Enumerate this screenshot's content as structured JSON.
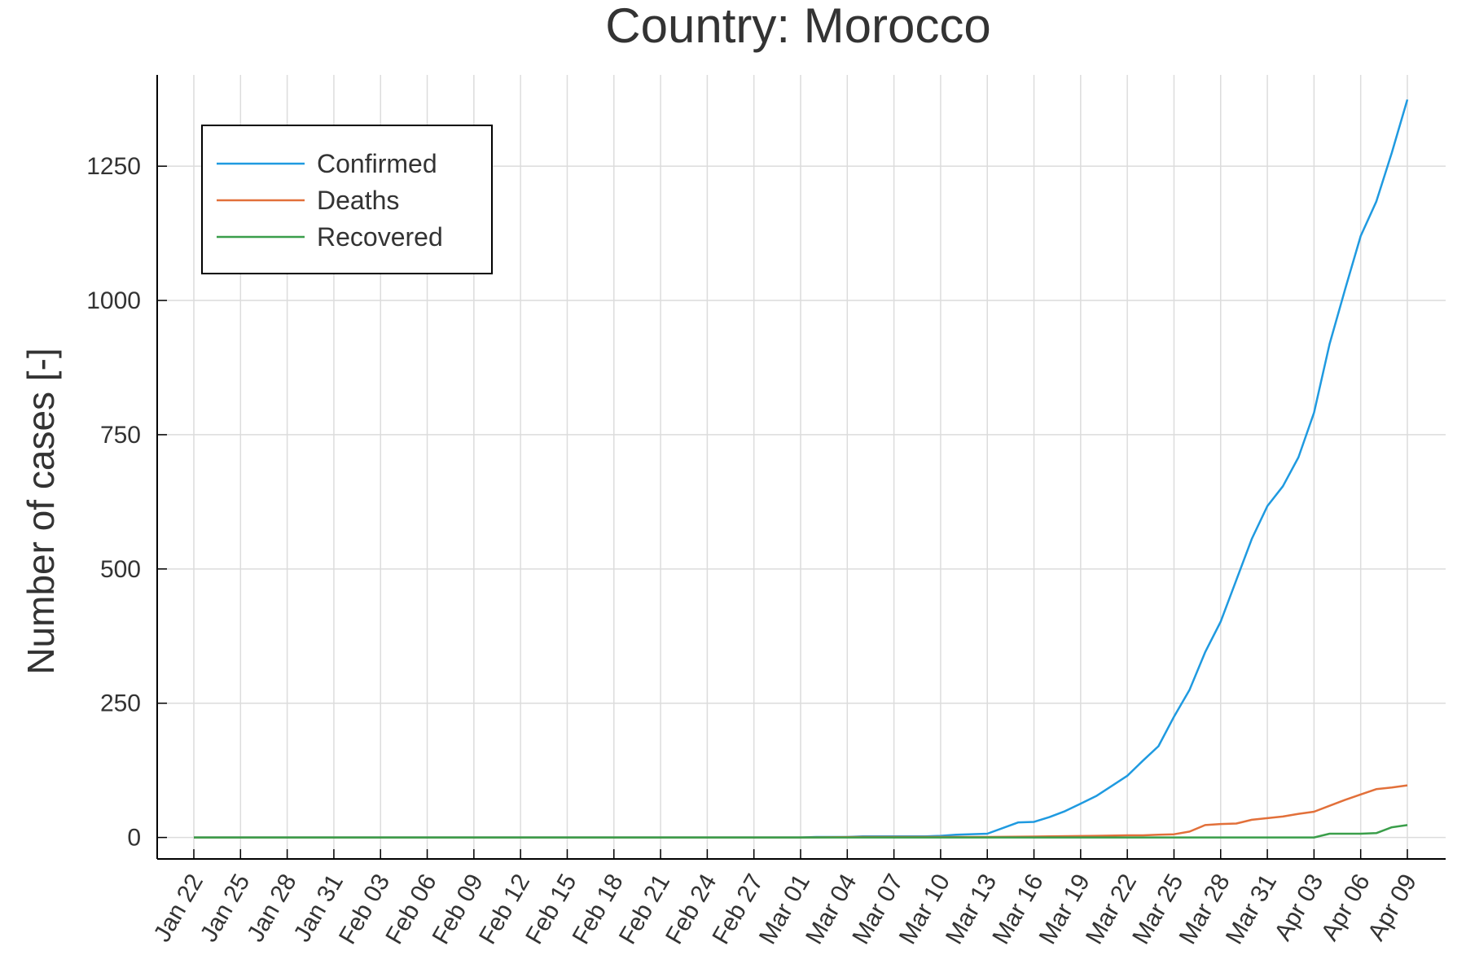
{
  "chart_data": {
    "type": "line",
    "title": "Country: Morocco",
    "xlabel": "",
    "ylabel": "Number of cases [-]",
    "start_date": "2020-01-22",
    "x_tick_labels": [
      "Jan 22",
      "Jan 25",
      "Jan 28",
      "Jan 31",
      "Feb 03",
      "Feb 06",
      "Feb 09",
      "Feb 12",
      "Feb 15",
      "Feb 18",
      "Feb 21",
      "Feb 24",
      "Feb 27",
      "Mar 01",
      "Mar 04",
      "Mar 07",
      "Mar 10",
      "Mar 13",
      "Mar 16",
      "Mar 19",
      "Mar 22",
      "Mar 25",
      "Mar 28",
      "Mar 31",
      "Apr 03",
      "Apr 06",
      "Apr 09"
    ],
    "y_ticks": [
      0,
      250,
      500,
      750,
      1000,
      1250
    ],
    "ylim": [
      -40,
      1420
    ],
    "grid": true,
    "legend_position": "top-left",
    "series": [
      {
        "name": "Confirmed",
        "color": "#1f9ae0",
        "points": [
          [
            "Jan 22",
            0
          ],
          [
            "Mar 01",
            0
          ],
          [
            "Mar 02",
            1
          ],
          [
            "Mar 04",
            1
          ],
          [
            "Mar 05",
            2
          ],
          [
            "Mar 07",
            2
          ],
          [
            "Mar 09",
            2
          ],
          [
            "Mar 10",
            3
          ],
          [
            "Mar 11",
            5
          ],
          [
            "Mar 13",
            7
          ],
          [
            "Mar 15",
            28
          ],
          [
            "Mar 16",
            29
          ],
          [
            "Mar 17",
            38
          ],
          [
            "Mar 18",
            49
          ],
          [
            "Mar 19",
            63
          ],
          [
            "Mar 20",
            77
          ],
          [
            "Mar 21",
            96
          ],
          [
            "Mar 22",
            115
          ],
          [
            "Mar 23",
            143
          ],
          [
            "Mar 24",
            170
          ],
          [
            "Mar 25",
            225
          ],
          [
            "Mar 26",
            275
          ],
          [
            "Mar 27",
            345
          ],
          [
            "Mar 28",
            402
          ],
          [
            "Mar 29",
            479
          ],
          [
            "Mar 30",
            556
          ],
          [
            "Mar 31",
            617
          ],
          [
            "Apr 01",
            654
          ],
          [
            "Apr 02",
            708
          ],
          [
            "Apr 03",
            791
          ],
          [
            "Apr 04",
            919
          ],
          [
            "Apr 05",
            1021
          ],
          [
            "Apr 06",
            1120
          ],
          [
            "Apr 07",
            1184
          ],
          [
            "Apr 08",
            1275
          ],
          [
            "Apr 09",
            1374
          ]
        ]
      },
      {
        "name": "Deaths",
        "color": "#e2703a",
        "points": [
          [
            "Jan 22",
            0
          ],
          [
            "Mar 01",
            0
          ],
          [
            "Mar 05",
            1
          ],
          [
            "Mar 10",
            1
          ],
          [
            "Mar 13",
            1
          ],
          [
            "Mar 17",
            2
          ],
          [
            "Mar 20",
            3
          ],
          [
            "Mar 22",
            4
          ],
          [
            "Mar 23",
            4
          ],
          [
            "Mar 24",
            5
          ],
          [
            "Mar 25",
            6
          ],
          [
            "Mar 26",
            11
          ],
          [
            "Mar 27",
            23
          ],
          [
            "Mar 28",
            25
          ],
          [
            "Mar 29",
            26
          ],
          [
            "Mar 30",
            33
          ],
          [
            "Mar 31",
            36
          ],
          [
            "Apr 01",
            39
          ],
          [
            "Apr 02",
            44
          ],
          [
            "Apr 03",
            48
          ],
          [
            "Apr 04",
            59
          ],
          [
            "Apr 05",
            70
          ],
          [
            "Apr 06",
            80
          ],
          [
            "Apr 07",
            90
          ],
          [
            "Apr 08",
            93
          ],
          [
            "Apr 09",
            97
          ]
        ]
      },
      {
        "name": "Recovered",
        "color": "#3a9e4a",
        "points": [
          [
            "Jan 22",
            0
          ],
          [
            "Apr 03",
            0
          ],
          [
            "Apr 04",
            7
          ],
          [
            "Apr 05",
            7
          ],
          [
            "Apr 06",
            7
          ],
          [
            "Apr 07",
            8
          ],
          [
            "Apr 08",
            19
          ],
          [
            "Apr 09",
            23
          ]
        ]
      }
    ]
  }
}
